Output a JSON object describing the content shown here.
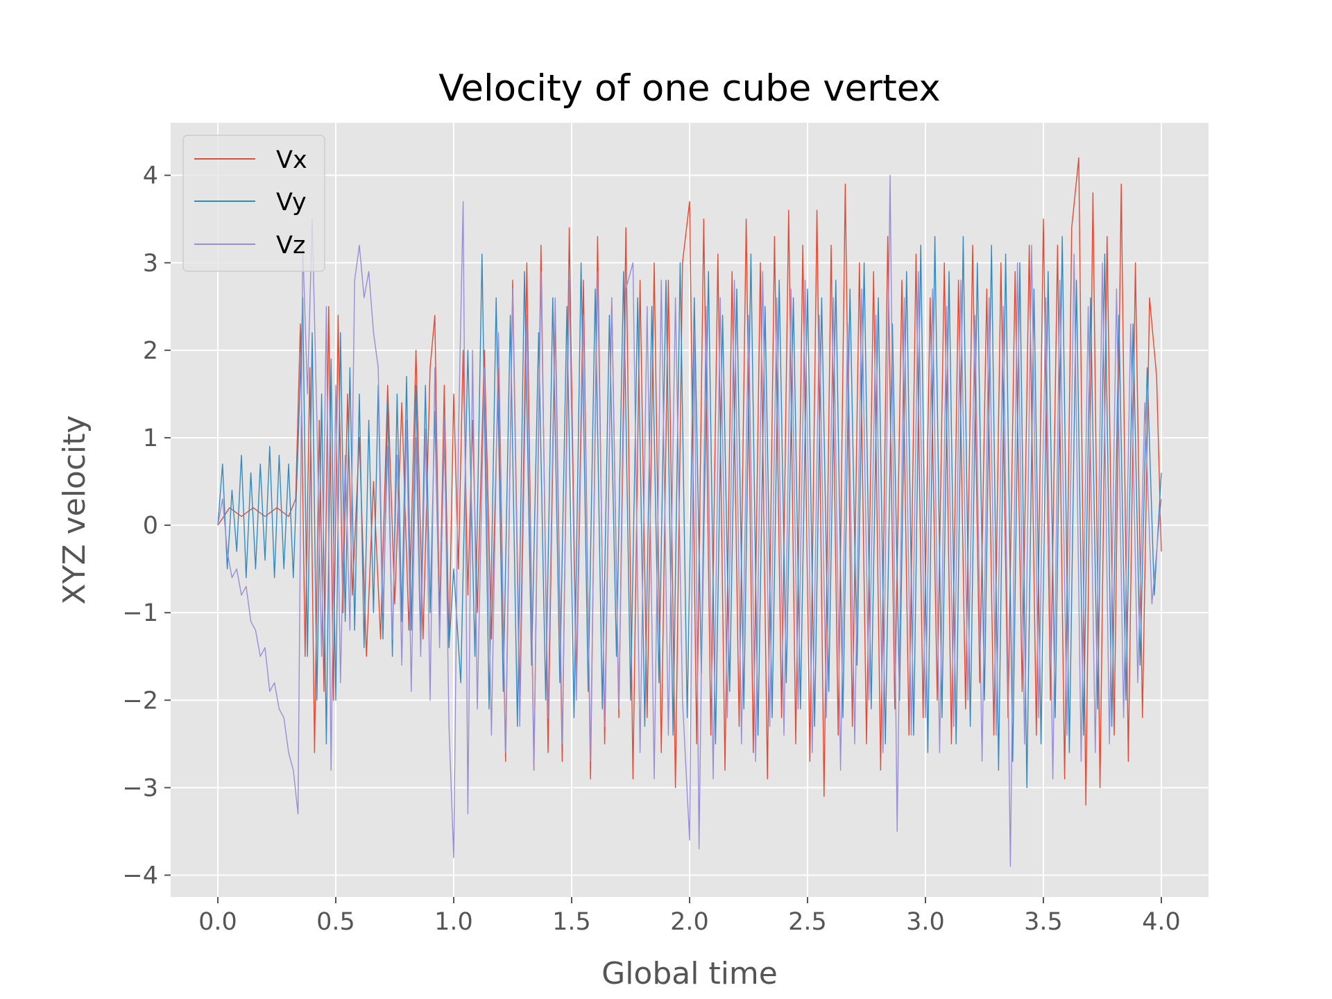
{
  "chart_data": {
    "type": "line",
    "title": "Velocity of one cube vertex",
    "xlabel": "Global time",
    "ylabel": "XYZ velocity",
    "xlim": [
      -0.2,
      4.2
    ],
    "ylim": [
      -4.25,
      4.6
    ],
    "xticks": [
      0.0,
      0.5,
      1.0,
      1.5,
      2.0,
      2.5,
      3.0,
      3.5,
      4.0
    ],
    "xtick_labels": [
      "0.0",
      "0.5",
      "1.0",
      "1.5",
      "2.0",
      "2.5",
      "3.0",
      "3.5",
      "4.0"
    ],
    "yticks": [
      -4,
      -3,
      -2,
      -1,
      0,
      1,
      2,
      3,
      4
    ],
    "ytick_labels": [
      "−4",
      "−3",
      "−2",
      "−1",
      "0",
      "1",
      "2",
      "3",
      "4"
    ],
    "grid": true,
    "legend_position": "top-left",
    "background_color": "#E5E5E5",
    "grid_color": "#FFFFFF",
    "series": [
      {
        "name": "Vx",
        "color": "#E24A33",
        "x": [
          0.0,
          0.05,
          0.1,
          0.15,
          0.2,
          0.25,
          0.3,
          0.33,
          0.35,
          0.37,
          0.39,
          0.41,
          0.43,
          0.45,
          0.47,
          0.49,
          0.51,
          0.53,
          0.55,
          0.57,
          0.6,
          0.63,
          0.66,
          0.69,
          0.72,
          0.75,
          0.78,
          0.81,
          0.84,
          0.87,
          0.9,
          0.92,
          0.94,
          0.96,
          0.98,
          1.0,
          1.02,
          1.04,
          1.06,
          1.08,
          1.1,
          1.13,
          1.16,
          1.19,
          1.22,
          1.25,
          1.28,
          1.31,
          1.34,
          1.37,
          1.4,
          1.43,
          1.46,
          1.49,
          1.52,
          1.55,
          1.58,
          1.61,
          1.64,
          1.67,
          1.7,
          1.73,
          1.76,
          1.79,
          1.82,
          1.85,
          1.88,
          1.91,
          1.94,
          1.97,
          2.0,
          2.03,
          2.06,
          2.09,
          2.12,
          2.15,
          2.18,
          2.21,
          2.24,
          2.27,
          2.3,
          2.33,
          2.36,
          2.39,
          2.42,
          2.45,
          2.48,
          2.51,
          2.54,
          2.57,
          2.6,
          2.63,
          2.66,
          2.69,
          2.72,
          2.75,
          2.78,
          2.81,
          2.84,
          2.87,
          2.9,
          2.93,
          2.96,
          2.99,
          3.02,
          3.05,
          3.08,
          3.11,
          3.14,
          3.17,
          3.2,
          3.23,
          3.26,
          3.29,
          3.32,
          3.35,
          3.38,
          3.41,
          3.44,
          3.47,
          3.5,
          3.53,
          3.56,
          3.59,
          3.62,
          3.65,
          3.68,
          3.71,
          3.74,
          3.77,
          3.8,
          3.83,
          3.86,
          3.89,
          3.92,
          3.95,
          3.98,
          4.0
        ],
        "values": [
          0.0,
          0.2,
          0.1,
          0.2,
          0.1,
          0.2,
          0.1,
          0.3,
          2.3,
          -1.5,
          1.8,
          -2.6,
          1.2,
          -1.9,
          2.5,
          -2.0,
          2.4,
          -1.0,
          1.5,
          -0.8,
          1.0,
          -1.5,
          0.5,
          -1.3,
          1.6,
          -0.9,
          1.4,
          -1.2,
          2.0,
          -1.3,
          1.8,
          2.4,
          -1.1,
          1.6,
          -1.4,
          1.5,
          -0.5,
          2.0,
          -0.8,
          1.2,
          -1.0,
          2.0,
          -1.3,
          1.8,
          -2.7,
          2.8,
          -2.0,
          3.0,
          -2.8,
          3.2,
          -2.6,
          2.4,
          -2.7,
          3.4,
          -1.8,
          2.8,
          -2.9,
          3.3,
          -2.5,
          2.6,
          -2.2,
          3.4,
          -2.9,
          2.8,
          -2.2,
          3.0,
          -2.6,
          2.8,
          -3.0,
          3.0,
          3.7,
          -2.5,
          3.5,
          -2.4,
          3.1,
          -2.8,
          2.9,
          -2.3,
          3.5,
          -2.6,
          3.0,
          -2.9,
          3.3,
          -2.2,
          3.6,
          -2.5,
          3.2,
          -2.7,
          3.6,
          -3.1,
          3.2,
          -2.4,
          3.9,
          -2.3,
          3.0,
          -2.5,
          2.9,
          -2.8,
          3.3,
          -2.1,
          2.8,
          -2.4,
          3.1,
          -2.2,
          2.6,
          -2.0,
          3.0,
          -2.5,
          2.8,
          -2.1,
          3.2,
          -1.8,
          2.7,
          -2.4,
          3.0,
          -2.2,
          2.9,
          -1.9,
          3.2,
          -2.4,
          3.5,
          -2.0,
          3.2,
          -2.9,
          3.4,
          4.2,
          -3.2,
          3.8,
          -3.0,
          3.3,
          -2.4,
          3.9,
          -2.7,
          3.0,
          -2.2,
          2.6,
          1.7,
          -0.3
        ]
      },
      {
        "name": "Vy",
        "color": "#348ABD",
        "x": [
          0.0,
          0.02,
          0.04,
          0.06,
          0.08,
          0.1,
          0.12,
          0.14,
          0.16,
          0.18,
          0.2,
          0.22,
          0.24,
          0.26,
          0.28,
          0.3,
          0.32,
          0.34,
          0.36,
          0.38,
          0.4,
          0.42,
          0.44,
          0.46,
          0.48,
          0.5,
          0.52,
          0.54,
          0.56,
          0.58,
          0.6,
          0.62,
          0.64,
          0.66,
          0.68,
          0.7,
          0.72,
          0.74,
          0.76,
          0.78,
          0.8,
          0.82,
          0.84,
          0.86,
          0.88,
          0.9,
          0.92,
          0.94,
          0.96,
          0.98,
          1.0,
          1.03,
          1.06,
          1.09,
          1.12,
          1.15,
          1.18,
          1.21,
          1.24,
          1.27,
          1.3,
          1.33,
          1.36,
          1.39,
          1.42,
          1.45,
          1.48,
          1.51,
          1.54,
          1.57,
          1.6,
          1.63,
          1.66,
          1.69,
          1.72,
          1.75,
          1.78,
          1.81,
          1.84,
          1.87,
          1.9,
          1.93,
          1.96,
          1.99,
          2.02,
          2.05,
          2.08,
          2.11,
          2.14,
          2.17,
          2.2,
          2.23,
          2.26,
          2.29,
          2.32,
          2.35,
          2.38,
          2.41,
          2.44,
          2.47,
          2.5,
          2.53,
          2.56,
          2.59,
          2.62,
          2.65,
          2.68,
          2.71,
          2.74,
          2.77,
          2.8,
          2.83,
          2.86,
          2.89,
          2.92,
          2.95,
          2.98,
          3.01,
          3.04,
          3.07,
          3.1,
          3.13,
          3.16,
          3.19,
          3.22,
          3.25,
          3.28,
          3.31,
          3.34,
          3.37,
          3.4,
          3.43,
          3.46,
          3.49,
          3.52,
          3.55,
          3.58,
          3.61,
          3.64,
          3.67,
          3.7,
          3.73,
          3.76,
          3.79,
          3.82,
          3.85,
          3.88,
          3.91,
          3.94,
          3.97,
          4.0
        ],
        "values": [
          0.0,
          0.7,
          -0.5,
          0.4,
          -0.3,
          0.8,
          -0.6,
          0.6,
          -0.5,
          0.7,
          -0.4,
          0.9,
          -0.6,
          0.8,
          -0.5,
          0.7,
          -0.6,
          0.9,
          2.6,
          -1.5,
          2.2,
          -2.0,
          1.5,
          -2.5,
          1.9,
          -2.0,
          2.2,
          -1.1,
          1.8,
          -1.2,
          1.5,
          -1.4,
          1.2,
          -1.0,
          1.6,
          -1.3,
          1.4,
          -1.5,
          1.5,
          -1.1,
          1.7,
          -1.2,
          1.6,
          -1.3,
          1.6,
          -1.0,
          1.3,
          -1.2,
          1.0,
          -1.4,
          -0.5,
          -1.8,
          2.0,
          -1.5,
          3.1,
          -2.1,
          2.6,
          -1.9,
          2.4,
          -2.3,
          2.9,
          -1.6,
          2.2,
          -2.0,
          2.6,
          -1.8,
          2.5,
          -2.2,
          3.0,
          -1.9,
          2.7,
          -2.1,
          2.4,
          -1.5,
          2.9,
          -2.0,
          2.6,
          -2.3,
          2.5,
          -1.8,
          2.8,
          -2.4,
          3.0,
          -2.2,
          2.6,
          -1.7,
          2.9,
          -2.5,
          2.4,
          -1.9,
          2.7,
          -2.1,
          3.1,
          -2.4,
          2.5,
          -2.2,
          2.8,
          -1.8,
          2.6,
          -2.1,
          2.7,
          -2.3,
          2.6,
          -1.9,
          2.8,
          -2.2,
          2.7,
          -1.6,
          3.0,
          -2.1,
          2.6,
          -2.5,
          2.3,
          -2.0,
          2.9,
          -2.4,
          3.2,
          -2.6,
          3.3,
          -2.2,
          2.9,
          -2.5,
          3.3,
          -2.3,
          3.0,
          -2.0,
          3.2,
          -2.8,
          3.1,
          -2.7,
          3.0,
          -3.0,
          2.7,
          -2.5,
          2.9,
          -2.2,
          3.3,
          -2.6,
          2.8,
          -2.4,
          2.6,
          -2.1,
          3.1,
          -2.3,
          2.4,
          -2.0,
          2.3,
          -1.6,
          1.8,
          -0.8,
          0.6
        ]
      },
      {
        "name": "Vz",
        "color": "#988ED5",
        "x": [
          0.0,
          0.02,
          0.04,
          0.06,
          0.08,
          0.1,
          0.12,
          0.14,
          0.16,
          0.18,
          0.2,
          0.22,
          0.24,
          0.26,
          0.28,
          0.3,
          0.32,
          0.34,
          0.36,
          0.38,
          0.4,
          0.42,
          0.44,
          0.46,
          0.48,
          0.5,
          0.52,
          0.54,
          0.56,
          0.58,
          0.6,
          0.62,
          0.64,
          0.66,
          0.68,
          0.7,
          0.72,
          0.74,
          0.76,
          0.78,
          0.8,
          0.82,
          0.84,
          0.86,
          0.88,
          0.9,
          0.92,
          0.94,
          0.96,
          0.98,
          1.0,
          1.02,
          1.04,
          1.06,
          1.08,
          1.1,
          1.13,
          1.16,
          1.19,
          1.22,
          1.25,
          1.28,
          1.31,
          1.34,
          1.37,
          1.4,
          1.43,
          1.46,
          1.49,
          1.52,
          1.55,
          1.58,
          1.61,
          1.64,
          1.67,
          1.7,
          1.73,
          1.76,
          1.79,
          1.82,
          1.85,
          1.88,
          1.91,
          1.94,
          1.97,
          2.0,
          2.02,
          2.04,
          2.07,
          2.1,
          2.13,
          2.16,
          2.19,
          2.22,
          2.25,
          2.28,
          2.31,
          2.34,
          2.37,
          2.4,
          2.43,
          2.46,
          2.49,
          2.52,
          2.55,
          2.58,
          2.61,
          2.64,
          2.67,
          2.7,
          2.73,
          2.76,
          2.79,
          2.82,
          2.85,
          2.88,
          2.91,
          2.94,
          2.97,
          3.0,
          3.03,
          3.06,
          3.09,
          3.12,
          3.15,
          3.18,
          3.21,
          3.24,
          3.27,
          3.3,
          3.33,
          3.36,
          3.39,
          3.42,
          3.45,
          3.48,
          3.51,
          3.54,
          3.57,
          3.6,
          3.63,
          3.66,
          3.69,
          3.72,
          3.75,
          3.78,
          3.81,
          3.84,
          3.87,
          3.9,
          3.93,
          3.96,
          4.0
        ],
        "values": [
          0.0,
          0.3,
          -0.3,
          -0.6,
          -0.5,
          -0.8,
          -0.7,
          -1.1,
          -1.2,
          -1.5,
          -1.4,
          -1.9,
          -1.8,
          -2.1,
          -2.2,
          -2.6,
          -2.8,
          -3.3,
          3.2,
          1.5,
          3.5,
          1.2,
          -1.5,
          2.5,
          -2.8,
          1.6,
          -1.8,
          0.8,
          -1.2,
          2.8,
          3.2,
          2.6,
          2.9,
          2.2,
          1.8,
          -1.0,
          0.9,
          -1.3,
          0.8,
          -1.6,
          1.2,
          -1.9,
          1.0,
          -1.5,
          1.1,
          -2.0,
          1.8,
          -1.4,
          1.2,
          -2.3,
          -3.8,
          1.0,
          3.7,
          -3.3,
          2.0,
          -2.1,
          1.8,
          -2.4,
          2.2,
          -2.6,
          2.7,
          -2.3,
          2.4,
          -2.8,
          2.9,
          -2.2,
          2.6,
          -2.5,
          2.8,
          -2.0,
          2.4,
          -2.7,
          2.9,
          -2.3,
          2.6,
          -2.1,
          2.7,
          3.0,
          -2.6,
          2.5,
          -2.9,
          2.8,
          -2.4,
          2.6,
          -2.0,
          -3.6,
          2.2,
          -3.7,
          2.5,
          -2.9,
          2.6,
          -2.2,
          2.8,
          -2.5,
          2.4,
          -2.7,
          2.9,
          -2.3,
          2.6,
          -2.4,
          2.7,
          -2.1,
          2.8,
          -2.6,
          2.4,
          -2.2,
          2.6,
          -2.8,
          2.3,
          -2.5,
          2.7,
          -2.0,
          2.4,
          -2.6,
          4.0,
          -3.5,
          2.6,
          -2.4,
          2.9,
          -2.2,
          2.7,
          -2.6,
          2.5,
          -2.3,
          2.8,
          -2.0,
          2.4,
          -2.7,
          2.6,
          -2.4,
          2.5,
          -3.9,
          3.0,
          -2.5,
          3.2,
          -2.2,
          2.6,
          -2.9,
          2.8,
          -2.4,
          3.1,
          -2.7,
          2.5,
          -2.6,
          3.0,
          -2.5,
          2.7,
          -2.2,
          2.3,
          -1.8,
          1.4,
          -0.9,
          0.3
        ]
      }
    ]
  }
}
